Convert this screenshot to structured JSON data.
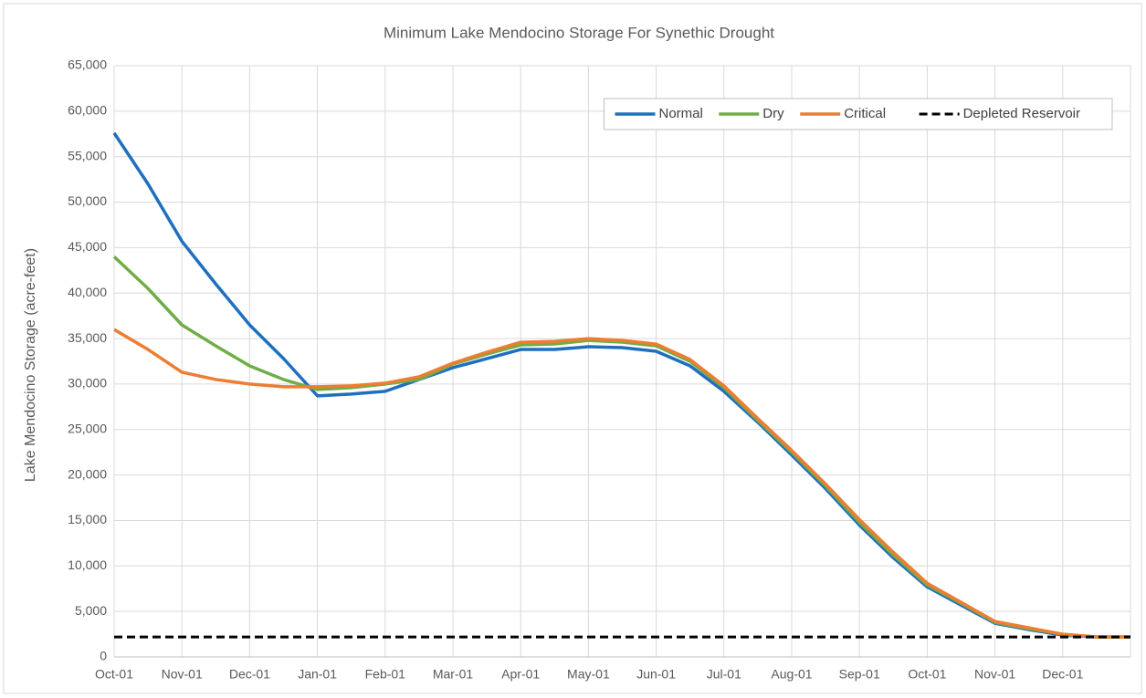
{
  "chart_data": {
    "type": "line",
    "title": "Minimum Lake Mendocino Storage For Synethic Drought",
    "ylabel": "Lake Mendocino Storage (acre-feet)",
    "categories": [
      "Oct-01",
      null,
      "Nov-01",
      null,
      "Dec-01",
      null,
      "Jan-01",
      null,
      "Feb-01",
      null,
      "Mar-01",
      null,
      "Apr-01",
      null,
      "May-01",
      null,
      "Jun-01",
      null,
      "Jul-01",
      null,
      "Aug-01",
      null,
      "Sep-01",
      null,
      "Oct-01",
      null,
      "Nov-01",
      null,
      "Dec-01",
      null,
      null
    ],
    "series": [
      {
        "name": "Normal",
        "color": "#1f6fbf",
        "values": [
          57600,
          52000,
          45700,
          41000,
          36500,
          32800,
          28700,
          28900,
          29200,
          30500,
          31800,
          32800,
          33800,
          33800,
          34100,
          34000,
          33600,
          32000,
          29200,
          25800,
          22200,
          18500,
          14500,
          10900,
          7700,
          5700,
          3700,
          3000,
          2400,
          2200,
          2200
        ]
      },
      {
        "name": "Dry",
        "color": "#70ad47",
        "values": [
          44000,
          40500,
          36500,
          34200,
          32000,
          30500,
          29400,
          29600,
          30000,
          30500,
          32200,
          33300,
          34300,
          34400,
          34800,
          34600,
          34200,
          32500,
          29600,
          26000,
          22500,
          18800,
          14800,
          11200,
          7900,
          5900,
          3800,
          3100,
          2500,
          2200,
          2200
        ]
      },
      {
        "name": "Critical",
        "color": "#ed7d31",
        "values": [
          36000,
          33800,
          31300,
          30500,
          30000,
          29700,
          29700,
          29800,
          30100,
          30800,
          32300,
          33500,
          34600,
          34700,
          35000,
          34800,
          34400,
          32700,
          29800,
          26200,
          22700,
          19000,
          15100,
          11500,
          8100,
          6000,
          3900,
          3200,
          2500,
          2200,
          2200
        ]
      },
      {
        "name": "Depleted Reservoir",
        "color": "#000000",
        "dash": true,
        "values": [
          2200,
          2200,
          2200,
          2200,
          2200,
          2200,
          2200,
          2200,
          2200,
          2200,
          2200,
          2200,
          2200,
          2200,
          2200,
          2200,
          2200,
          2200,
          2200,
          2200,
          2200,
          2200,
          2200,
          2200,
          2200,
          2200,
          2200,
          2200,
          2200,
          2200,
          2200
        ]
      }
    ],
    "ylim": [
      0,
      65000
    ],
    "yticks": [
      0,
      {
        "value": 5000,
        "label": "5,000"
      },
      {
        "value": 10000,
        "label": "10,000"
      },
      {
        "value": 15000,
        "label": "15,000"
      },
      {
        "value": 20000,
        "label": "20,000"
      },
      {
        "value": 25000,
        "label": "25,000"
      },
      {
        "value": 30000,
        "label": "30,000"
      },
      {
        "value": 35000,
        "label": "35,000"
      },
      {
        "value": 40000,
        "label": "40,000"
      },
      {
        "value": 45000,
        "label": "45,000"
      },
      {
        "value": 50000,
        "label": "50,000"
      },
      {
        "value": 55000,
        "label": "55,000"
      },
      {
        "value": 60000,
        "label": "60,000"
      },
      {
        "value": 65000,
        "label": "65,000"
      }
    ],
    "grid": true,
    "legend": "upper right"
  }
}
